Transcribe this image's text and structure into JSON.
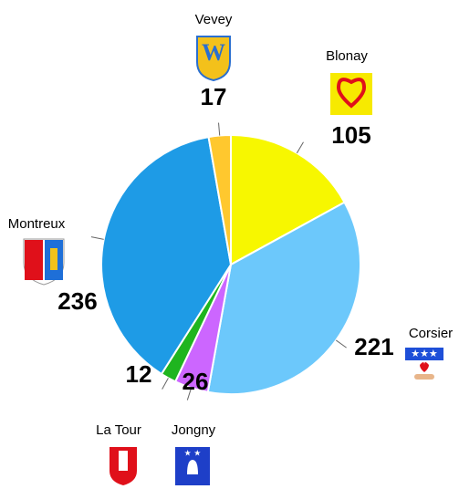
{
  "chart_data": {
    "type": "pie",
    "categories": [
      "Blonay",
      "Corsier",
      "Jongny",
      "La Tour",
      "Montreux",
      "Vevey"
    ],
    "values": [
      105,
      221,
      26,
      12,
      236,
      17
    ],
    "colors": [
      "#f7f700",
      "#6cc8fb",
      "#cc66ff",
      "#1fb51f",
      "#1e9be6",
      "#ffc82e"
    ]
  }
}
